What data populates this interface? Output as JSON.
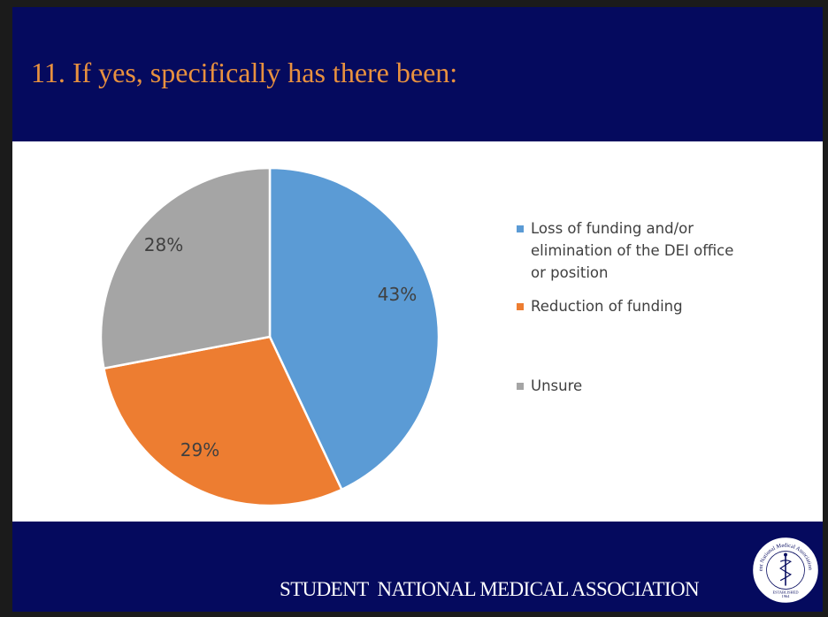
{
  "slide": {
    "title": "11. If yes, specifically has there been:",
    "footer": "STUDENT  NATIONAL MEDICAL ASSOCIATION",
    "background_color": "#050a5e",
    "title_color": "#e8913f"
  },
  "seal": {
    "icon": "caduceus-seal-icon",
    "ring_text_top": "Student National Medical Association, Inc.",
    "ring_text_bottom": "ESTABLISHED",
    "year": "1964"
  },
  "chart_data": {
    "type": "pie",
    "title": "",
    "categories": [
      "Loss of funding and/or elimination of the DEI office or position",
      "Reduction of funding",
      "Unsure"
    ],
    "legend_lines": [
      [
        "Loss of funding and/or",
        "elimination of the DEI office",
        "or position"
      ],
      [
        "Reduction of funding"
      ],
      [
        "Unsure"
      ]
    ],
    "values": [
      43,
      29,
      28
    ],
    "labels": [
      "43%",
      "29%",
      "28%"
    ],
    "colors": [
      "#5b9bd5",
      "#ed7d31",
      "#a5a5a5"
    ],
    "legend_placement": "right"
  }
}
